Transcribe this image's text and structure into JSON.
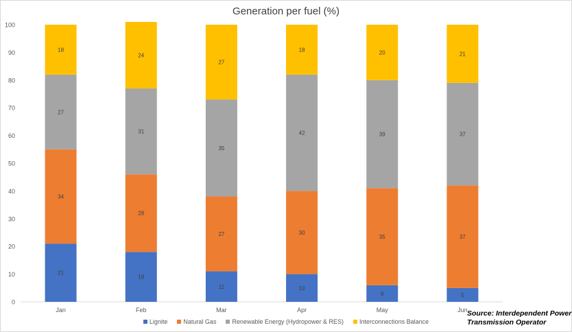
{
  "chart_data": {
    "type": "bar",
    "stacked": true,
    "title": "Generation per fuel (%)",
    "categories": [
      "Jan",
      "Feb",
      "Mar",
      "Apr",
      "May",
      "Jun"
    ],
    "series": [
      {
        "name": "Lignite",
        "color": "#4472c4",
        "values": [
          21,
          18,
          11,
          10,
          6,
          5
        ]
      },
      {
        "name": "Natural Gas",
        "color": "#ed7d31",
        "values": [
          34,
          28,
          27,
          30,
          35,
          37
        ]
      },
      {
        "name": "Renewable Energy (Hydropower & RES)",
        "color": "#a5a5a5",
        "values": [
          27,
          31,
          35,
          42,
          39,
          37
        ]
      },
      {
        "name": "Interconnections Balance",
        "color": "#ffc000",
        "values": [
          18,
          24,
          27,
          18,
          20,
          21
        ]
      }
    ],
    "ylim": [
      0,
      100
    ],
    "yticks": [
      0,
      10,
      20,
      30,
      40,
      50,
      60,
      70,
      80,
      90,
      100
    ],
    "grid": false,
    "legend_position": "bottom"
  },
  "source": {
    "line1": "Source: Interdependent Power",
    "line2": "Transmission Operator"
  }
}
